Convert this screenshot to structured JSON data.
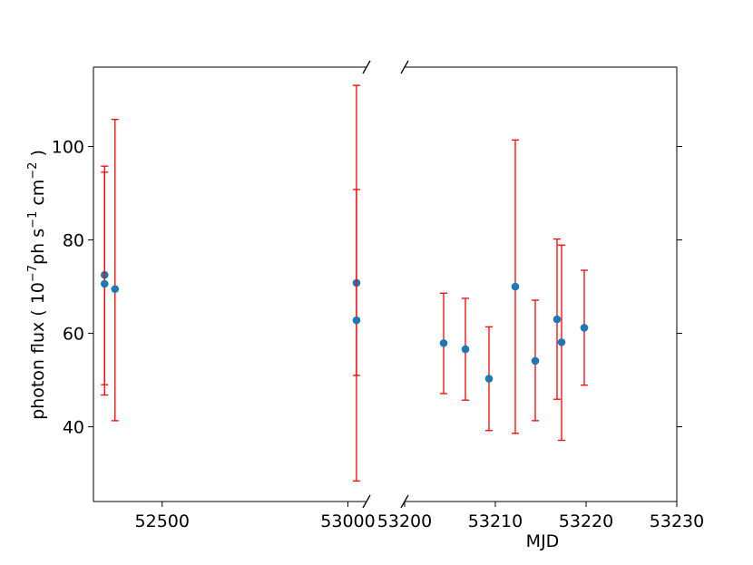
{
  "chart_data": {
    "type": "scatter",
    "xlabel": "MJD",
    "ylabel": {
      "prefix": "photon flux ( 10",
      "sup1": "−7",
      "mid": "ph s",
      "sup2": "−1",
      "mid2": " cm",
      "sup3": "−2",
      "suffix": " )"
    },
    "ylim": [
      24,
      117
    ],
    "yticks": [
      "40",
      "60",
      "80",
      "100"
    ],
    "panels": [
      {
        "xlim": [
          52315,
          53050
        ],
        "xticks": [
          "52500",
          "53000"
        ],
        "points": [
          {
            "x": 52345,
            "y": 72.5,
            "ylow": 49.0,
            "yhigh": 95.8
          },
          {
            "x": 52345,
            "y": 70.6,
            "ylow": 46.8,
            "yhigh": 94.5
          },
          {
            "x": 52373,
            "y": 69.5,
            "ylow": 41.3,
            "yhigh": 105.8
          },
          {
            "x": 53023,
            "y": 70.8,
            "ylow": 28.4,
            "yhigh": 113.1
          },
          {
            "x": 53023,
            "y": 62.8,
            "ylow": 51.0,
            "yhigh": 90.8
          }
        ]
      },
      {
        "xlim": [
          53200,
          53230
        ],
        "xticks": [
          "53200",
          "53210",
          "53220",
          "53230"
        ],
        "points": [
          {
            "x": 53204.3,
            "y": 57.9,
            "ylow": 47.1,
            "yhigh": 68.6
          },
          {
            "x": 53206.7,
            "y": 56.6,
            "ylow": 45.7,
            "yhigh": 67.5
          },
          {
            "x": 53209.3,
            "y": 50.3,
            "ylow": 39.2,
            "yhigh": 61.4
          },
          {
            "x": 53212.2,
            "y": 70.0,
            "ylow": 38.6,
            "yhigh": 101.4
          },
          {
            "x": 53214.4,
            "y": 54.1,
            "ylow": 41.3,
            "yhigh": 67.1
          },
          {
            "x": 53216.8,
            "y": 63.0,
            "ylow": 45.9,
            "yhigh": 80.2
          },
          {
            "x": 53217.3,
            "y": 58.1,
            "ylow": 37.1,
            "yhigh": 78.9
          },
          {
            "x": 53219.8,
            "y": 61.2,
            "ylow": 48.9,
            "yhigh": 73.5
          }
        ]
      }
    ],
    "marker_color": "#1f77b4",
    "errorbar_color": "#ff0000",
    "grid": false,
    "broken_x_axis": true
  }
}
